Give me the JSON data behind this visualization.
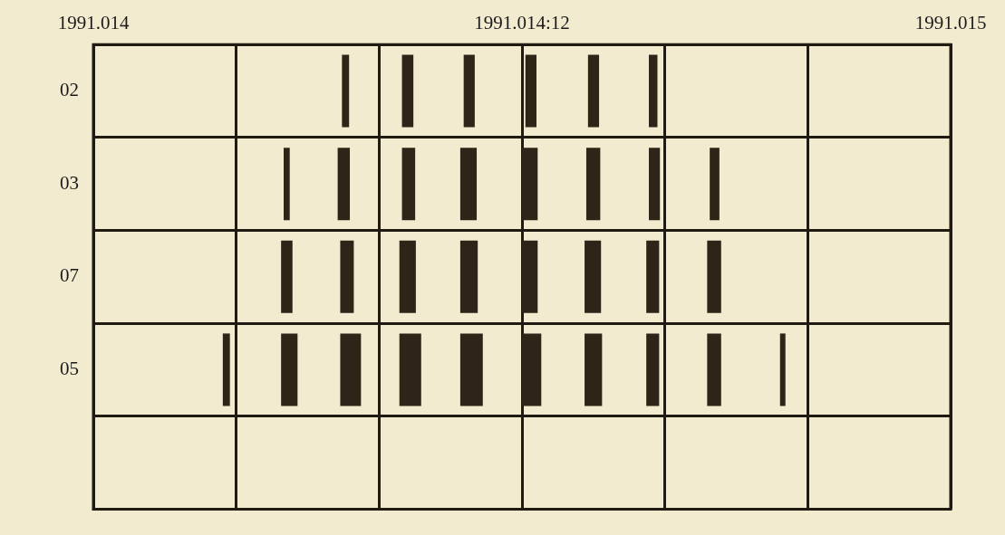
{
  "chart_data": {
    "type": "bar",
    "orientation": "horizontal",
    "categories": [
      "02",
      "03",
      "07",
      "05",
      null
    ],
    "xlim": [
      1991.014,
      1991.015
    ],
    "xticks": [
      1991.014,
      {
        "value": 1991.0141667,
        "label": null
      },
      {
        "value": 1991.0143333,
        "label": null
      },
      {
        "value": 1991.0145,
        "label": "1991.014:12"
      },
      {
        "value": 1991.0146667,
        "label": null
      },
      {
        "value": 1991.0148333,
        "label": null
      },
      1991.015
    ],
    "grid": true,
    "series": [
      {
        "color": "#2e2417",
        "base": [
          null,
          null,
          null,
          1991.014151,
          null
        ],
        "values": [
          null,
          null,
          null,
          8.3e-06,
          null
        ]
      },
      {
        "color": "#2e2417",
        "base": [
          null,
          1991.014222,
          1991.014219,
          1991.014219,
          null
        ],
        "values": [
          null,
          7.1e-06,
          1.33e-05,
          1.92e-05,
          null
        ]
      },
      {
        "color": "#2e2417",
        "base": [
          1991.01429,
          1991.014285,
          1991.014288,
          1991.014288,
          null
        ],
        "values": [
          8.3e-06,
          1.42e-05,
          1.58e-05,
          2.42e-05,
          null
        ]
      },
      {
        "color": "#2e2417",
        "base": [
          1991.01436,
          1991.01436,
          1991.014357,
          1991.014357,
          null
        ],
        "values": [
          1.33e-05,
          1.54e-05,
          1.92e-05,
          2.54e-05,
          null
        ]
      },
      {
        "color": "#2e2417",
        "base": [
          1991.014432,
          1991.014428,
          1991.014428,
          1991.014428,
          null
        ],
        "values": [
          1.29e-05,
          1.92e-05,
          2.04e-05,
          2.63e-05,
          null
        ]
      },
      {
        "color": "#2e2417",
        "base": [
          1991.014504,
          1991.0145,
          1991.0145,
          1991.0145,
          null
        ],
        "values": [
          1.29e-05,
          1.83e-05,
          1.83e-05,
          2.25e-05,
          null
        ]
      },
      {
        "color": "#2e2417",
        "base": [
          1991.014577,
          1991.014575,
          1991.014573,
          1991.014573,
          null
        ],
        "values": [
          1.29e-05,
          1.63e-05,
          1.92e-05,
          2.04e-05,
          null
        ]
      },
      {
        "color": "#2e2417",
        "base": [
          1991.014648,
          1991.014648,
          1991.014645,
          1991.014645,
          null
        ],
        "values": [
          1e-05,
          1.29e-05,
          1.5e-05,
          1.5e-05,
          null
        ]
      },
      {
        "color": "#2e2417",
        "base": [
          null,
          1991.014719,
          1991.014716,
          1991.014716,
          null
        ],
        "values": [
          null,
          1.13e-05,
          1.63e-05,
          1.63e-05,
          null
        ]
      },
      {
        "color": "#2e2417",
        "base": [
          null,
          null,
          null,
          1991.014801,
          null
        ],
        "values": [
          null,
          null,
          null,
          6.3e-06,
          null
        ]
      }
    ]
  }
}
